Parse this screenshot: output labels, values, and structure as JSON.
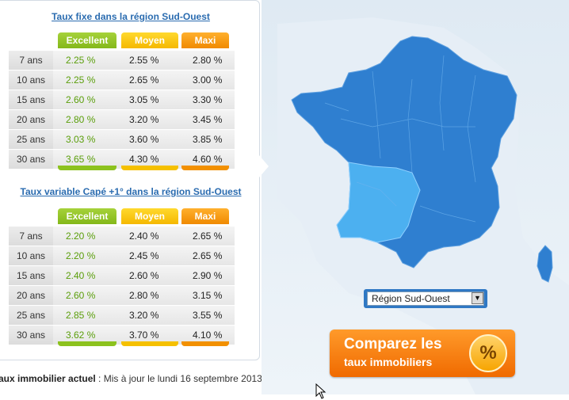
{
  "fixed": {
    "title": "Taux fixe dans la région Sud-Ouest",
    "headers": [
      "Excellent",
      "Moyen",
      "Maxi"
    ],
    "rows": [
      [
        "7 ans",
        "2.25 %",
        "2.55 %",
        "2.80 %"
      ],
      [
        "10 ans",
        "2.25 %",
        "2.65 %",
        "3.00 %"
      ],
      [
        "15 ans",
        "2.60 %",
        "3.05 %",
        "3.30 %"
      ],
      [
        "20 ans",
        "2.80 %",
        "3.20 %",
        "3.45 %"
      ],
      [
        "25 ans",
        "3.03 %",
        "3.60 %",
        "3.85 %"
      ],
      [
        "30 ans",
        "3.65 %",
        "4.30 %",
        "4.60 %"
      ]
    ]
  },
  "variable": {
    "title": "Taux variable Capé +1° dans la région Sud-Ouest",
    "headers": [
      "Excellent",
      "Moyen",
      "Maxi"
    ],
    "rows": [
      [
        "7 ans",
        "2.20 %",
        "2.40 %",
        "2.65 %"
      ],
      [
        "10 ans",
        "2.20 %",
        "2.45 %",
        "2.65 %"
      ],
      [
        "15 ans",
        "2.40 %",
        "2.60 %",
        "2.90 %"
      ],
      [
        "20 ans",
        "2.60 %",
        "2.80 %",
        "3.15 %"
      ],
      [
        "25 ans",
        "2.85 %",
        "3.20 %",
        "3.55 %"
      ],
      [
        "30 ans",
        "3.62 %",
        "3.70 %",
        "4.10 %"
      ]
    ]
  },
  "update": {
    "label": "aux immobilier actuel",
    "text": " : Mis à jour le lundi 16 septembre 2013"
  },
  "region_select": {
    "value": "Région Sud-Ouest",
    "arrow": "▼"
  },
  "cta": {
    "line1": "Comparez les",
    "line2": "taux immobiliers",
    "badge": "%",
    "icon": "percent-icon"
  },
  "colors": {
    "excellent": "#8cc21e",
    "moyen": "#f5c000",
    "maxi": "#f29000",
    "map_region": "#2f7fd0",
    "map_selected": "#4cb0f0",
    "cta": "#f07a10",
    "link": "#2b6cb0"
  }
}
